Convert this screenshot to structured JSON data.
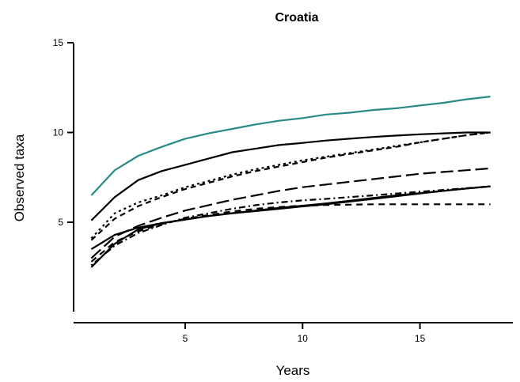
{
  "chart_data": {
    "type": "line",
    "title": "Croatia",
    "xlabel": "Years",
    "ylabel": "Observed taxa",
    "xlim": [
      0,
      20
    ],
    "ylim": [
      0,
      15
    ],
    "xticks": [
      5,
      10,
      15
    ],
    "yticks": [
      5,
      10,
      15
    ],
    "grid": false,
    "x": [
      1,
      2,
      3,
      4,
      5,
      6,
      7,
      8,
      9,
      10,
      11,
      12,
      13,
      14,
      15,
      16,
      17,
      18
    ],
    "series": [
      {
        "color": "#2a8a86",
        "style": "solid",
        "values": [
          6.5,
          7.9,
          8.7,
          9.2,
          9.65,
          9.95,
          10.2,
          10.45,
          10.65,
          10.8,
          11.0,
          11.1,
          11.25,
          11.35,
          11.5,
          11.65,
          11.85,
          12.0
        ]
      },
      {
        "color": "#000000",
        "style": "solid",
        "values": [
          5.1,
          6.4,
          7.35,
          7.85,
          8.2,
          8.55,
          8.9,
          9.1,
          9.3,
          9.42,
          9.55,
          9.65,
          9.75,
          9.83,
          9.9,
          9.95,
          10.0,
          10.0
        ]
      },
      {
        "color": "#000000",
        "style": "dotted",
        "values": [
          4.1,
          5.5,
          6.1,
          6.5,
          6.95,
          7.3,
          7.65,
          7.95,
          8.2,
          8.45,
          8.65,
          8.85,
          9.05,
          9.25,
          9.45,
          9.65,
          9.85,
          10.0
        ]
      },
      {
        "color": "#000000",
        "style": "dashed",
        "values": [
          4.0,
          5.2,
          5.9,
          6.4,
          6.85,
          7.2,
          7.55,
          7.85,
          8.1,
          8.35,
          8.6,
          8.8,
          9.0,
          9.2,
          9.45,
          9.65,
          9.85,
          10.0
        ]
      },
      {
        "color": "#000000",
        "style": "longdash",
        "values": [
          3.0,
          4.2,
          4.8,
          5.25,
          5.65,
          5.95,
          6.25,
          6.5,
          6.75,
          6.95,
          7.1,
          7.25,
          7.4,
          7.55,
          7.7,
          7.8,
          7.9,
          8.0
        ]
      },
      {
        "color": "#000000",
        "style": "solid",
        "values": [
          3.5,
          4.3,
          4.7,
          4.95,
          5.15,
          5.35,
          5.5,
          5.65,
          5.8,
          5.92,
          6.05,
          6.2,
          6.35,
          6.5,
          6.62,
          6.75,
          6.88,
          7.0
        ]
      },
      {
        "color": "#000000",
        "style": "dotdash",
        "values": [
          2.6,
          3.7,
          4.4,
          4.85,
          5.25,
          5.5,
          5.75,
          5.95,
          6.1,
          6.22,
          6.3,
          6.4,
          6.5,
          6.6,
          6.7,
          6.8,
          6.9,
          7.0
        ]
      },
      {
        "color": "#000000",
        "style": "shortdash",
        "values": [
          2.8,
          3.9,
          4.5,
          4.9,
          5.2,
          5.4,
          5.6,
          5.75,
          5.85,
          5.92,
          5.96,
          5.98,
          6.0,
          6.0,
          6.0,
          6.0,
          6.0,
          6.0
        ]
      },
      {
        "color": "#000000",
        "style": "solid",
        "values": [
          2.5,
          3.8,
          4.6,
          4.95,
          5.15,
          5.35,
          5.5,
          5.62,
          5.75,
          5.88,
          6.0,
          6.15,
          6.3,
          6.45,
          6.6,
          6.75,
          6.88,
          7.0
        ]
      }
    ]
  }
}
